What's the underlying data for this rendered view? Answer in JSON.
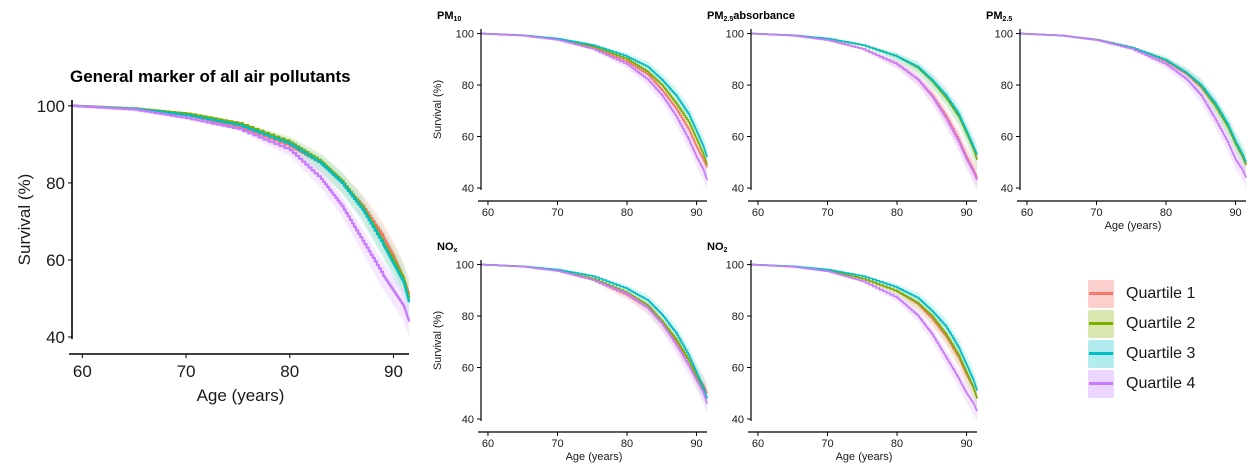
{
  "chart_data": [
    {
      "type": "line",
      "panel": "main",
      "title": "General marker of all air pollutants",
      "xlabel": "Age (years)",
      "ylabel": "Survival (%)",
      "x_ticks": [
        60,
        70,
        80,
        90
      ],
      "y_ticks": [
        40,
        60,
        80,
        100
      ],
      "xlim": [
        59,
        91.5
      ],
      "ylim": [
        40,
        101
      ],
      "grid": false,
      "x": [
        59,
        65,
        70,
        75,
        80,
        83,
        85,
        87,
        89,
        90,
        91,
        91.5
      ],
      "series": [
        {
          "name": "Quartile 1",
          "values": [
            100,
            99.2,
            97.5,
            94.5,
            89.5,
            85,
            80,
            74,
            66,
            61,
            55,
            51
          ]
        },
        {
          "name": "Quartile 2",
          "values": [
            100,
            99.3,
            98,
            95.5,
            90.5,
            85.5,
            80.5,
            73.5,
            64.5,
            60,
            55,
            50
          ]
        },
        {
          "name": "Quartile 3",
          "values": [
            100,
            99.2,
            97.6,
            95,
            90,
            85,
            80,
            73,
            64,
            59,
            54,
            49
          ]
        },
        {
          "name": "Quartile 4",
          "values": [
            100,
            99,
            96.8,
            94,
            88.5,
            81,
            74,
            65,
            56,
            52,
            48,
            44
          ]
        }
      ]
    },
    {
      "type": "line",
      "panel": "pm10",
      "title": "PM10",
      "xlabel": "",
      "ylabel": "Survival (%)",
      "x_ticks": [
        60,
        70,
        80,
        90
      ],
      "y_ticks": [
        40,
        60,
        80,
        100
      ],
      "xlim": [
        59,
        91.5
      ],
      "ylim": [
        40,
        101
      ],
      "grid": false,
      "x": [
        59,
        65,
        70,
        75,
        80,
        83,
        85,
        87,
        89,
        90,
        91,
        91.5
      ],
      "series": [
        {
          "name": "Quartile 1",
          "values": [
            100,
            99.2,
            97.6,
            94.5,
            89,
            84,
            78,
            71,
            62,
            56,
            51,
            48
          ]
        },
        {
          "name": "Quartile 2",
          "values": [
            100,
            99.3,
            97.8,
            95,
            90,
            85,
            80,
            73,
            65,
            59,
            53,
            49
          ]
        },
        {
          "name": "Quartile 3",
          "values": [
            100,
            99.3,
            98,
            95.5,
            91,
            87,
            82,
            76,
            68,
            62,
            56,
            52
          ]
        },
        {
          "name": "Quartile 4",
          "values": [
            100,
            99.2,
            97.5,
            94,
            88,
            82,
            76,
            68,
            58,
            52,
            47,
            43
          ]
        }
      ]
    },
    {
      "type": "line",
      "panel": "pm25abs",
      "title": "PM2.5absorbance",
      "xlabel": "",
      "ylabel": "",
      "x_ticks": [
        60,
        70,
        80,
        90
      ],
      "y_ticks": [
        40,
        60,
        80,
        100
      ],
      "xlim": [
        59,
        91.5
      ],
      "ylim": [
        40,
        101
      ],
      "grid": false,
      "x": [
        59,
        65,
        70,
        75,
        80,
        83,
        85,
        87,
        89,
        90,
        91,
        91.5
      ],
      "series": [
        {
          "name": "Quartile 1",
          "values": [
            100,
            99.2,
            97.5,
            94,
            88,
            82,
            76,
            68,
            58,
            52,
            47,
            44
          ]
        },
        {
          "name": "Quartile 2",
          "values": [
            100,
            99.3,
            98,
            95.5,
            91,
            86.5,
            81.5,
            75,
            67,
            61,
            55,
            51
          ]
        },
        {
          "name": "Quartile 3",
          "values": [
            100,
            99.3,
            98,
            95.5,
            91,
            87,
            82,
            76,
            68,
            62,
            56,
            53
          ]
        },
        {
          "name": "Quartile 4",
          "values": [
            100,
            99.2,
            97.4,
            94,
            88,
            82,
            75.5,
            67,
            57,
            51,
            46,
            43
          ]
        }
      ]
    },
    {
      "type": "line",
      "panel": "pm25",
      "title": "PM2.5",
      "xlabel": "Age (years)",
      "ylabel": "",
      "x_ticks": [
        60,
        70,
        80,
        90
      ],
      "y_ticks": [
        40,
        60,
        80,
        100
      ],
      "xlim": [
        59,
        91.5
      ],
      "ylim": [
        40,
        101
      ],
      "grid": false,
      "x": [
        59,
        65,
        70,
        75,
        80,
        83,
        85,
        87,
        89,
        90,
        91,
        91.5
      ],
      "series": [
        {
          "name": "Quartile 1",
          "values": [
            100,
            99.2,
            97.6,
            94.5,
            89,
            84,
            79,
            72,
            63,
            57,
            52,
            49
          ]
        },
        {
          "name": "Quartile 2",
          "values": [
            100,
            99.2,
            97.5,
            94.5,
            89.5,
            84.5,
            79.5,
            72,
            63,
            57,
            52,
            49
          ]
        },
        {
          "name": "Quartile 3",
          "values": [
            100,
            99.2,
            97.5,
            94.5,
            89.5,
            84.5,
            80,
            73,
            64,
            58,
            53,
            50
          ]
        },
        {
          "name": "Quartile 4",
          "values": [
            100,
            99.2,
            97.4,
            94,
            88,
            82,
            76,
            67,
            57,
            51,
            47,
            44
          ]
        }
      ]
    },
    {
      "type": "line",
      "panel": "nox",
      "title": "NOx",
      "xlabel": "Age (years)",
      "ylabel": "Survival (%)",
      "x_ticks": [
        60,
        70,
        80,
        90
      ],
      "y_ticks": [
        40,
        60,
        80,
        100
      ],
      "xlim": [
        59,
        91.5
      ],
      "ylim": [
        40,
        101
      ],
      "grid": false,
      "x": [
        59,
        65,
        70,
        75,
        80,
        83,
        85,
        87,
        89,
        90,
        91,
        91.5
      ],
      "series": [
        {
          "name": "Quartile 1",
          "values": [
            100,
            99.2,
            97.5,
            94,
            88,
            83,
            77,
            70,
            62,
            57,
            53,
            50
          ]
        },
        {
          "name": "Quartile 2",
          "values": [
            100,
            99.2,
            97.6,
            94.5,
            89,
            84,
            78,
            71,
            62,
            56,
            51,
            48
          ]
        },
        {
          "name": "Quartile 3",
          "values": [
            100,
            99.3,
            98,
            95.5,
            90.5,
            86,
            80.5,
            73.5,
            64,
            58,
            52,
            48
          ]
        },
        {
          "name": "Quartile 4",
          "values": [
            100,
            99.2,
            97.5,
            94,
            88.5,
            83,
            77,
            69,
            60,
            55,
            50,
            46
          ]
        }
      ]
    },
    {
      "type": "line",
      "panel": "no2",
      "title": "NO2",
      "xlabel": "Age (years)",
      "ylabel": "",
      "x_ticks": [
        60,
        70,
        80,
        90
      ],
      "y_ticks": [
        40,
        60,
        80,
        100
      ],
      "xlim": [
        59,
        91.5
      ],
      "ylim": [
        40,
        101
      ],
      "grid": false,
      "x": [
        59,
        65,
        70,
        75,
        80,
        83,
        85,
        87,
        89,
        90,
        91,
        91.5
      ],
      "series": [
        {
          "name": "Quartile 1",
          "values": [
            100,
            99.2,
            97.6,
            94.5,
            89.5,
            84.5,
            79,
            72,
            63,
            57,
            52,
            48
          ]
        },
        {
          "name": "Quartile 2",
          "values": [
            100,
            99.2,
            97.6,
            94.5,
            89.5,
            85,
            80,
            73,
            64,
            58,
            52,
            48
          ]
        },
        {
          "name": "Quartile 3",
          "values": [
            100,
            99.3,
            98,
            95.5,
            91,
            87,
            82,
            76,
            67,
            61,
            55,
            51
          ]
        },
        {
          "name": "Quartile 4",
          "values": [
            100,
            99.1,
            97.3,
            93.5,
            87,
            80,
            73,
            64,
            55,
            50,
            46,
            43
          ]
        }
      ]
    }
  ],
  "legend": {
    "items": [
      {
        "label": "Quartile 1",
        "color": "#f8766d",
        "band": "#fbcfcb"
      },
      {
        "label": "Quartile 2",
        "color": "#7cae00",
        "band": "#d8e8b0"
      },
      {
        "label": "Quartile 3",
        "color": "#00bfc4",
        "band": "#b3ecee"
      },
      {
        "label": "Quartile 4",
        "color": "#c77cff",
        "band": "#ecd6ff"
      }
    ]
  }
}
